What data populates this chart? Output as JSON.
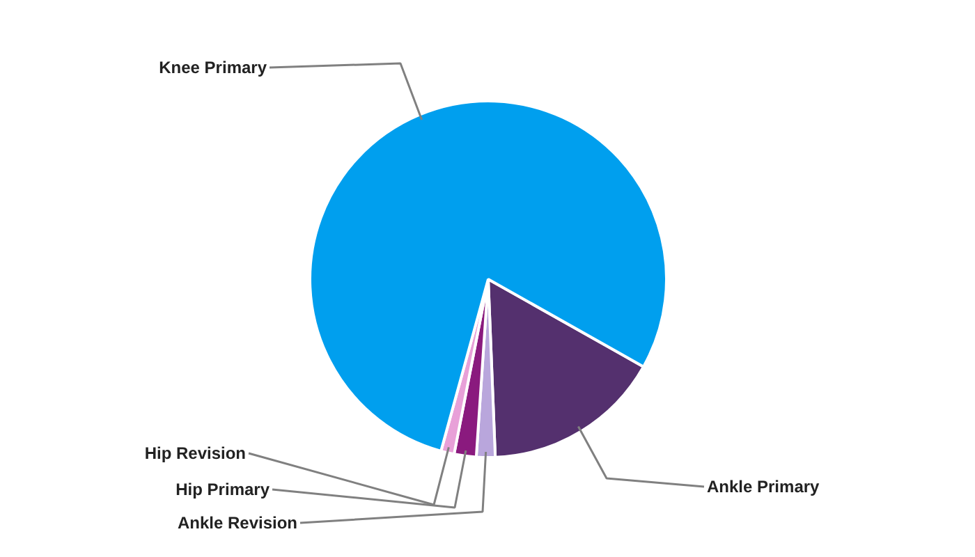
{
  "chart_data": {
    "type": "pie",
    "categories": [
      "Ankle Primary",
      "Ankle Revision",
      "Hip Primary",
      "Hip Revision",
      "Knee Primary"
    ],
    "values": [
      16.2,
      1.7,
      2.0,
      1.2,
      78.9
    ],
    "colors": [
      "#54306e",
      "#b9a6dc",
      "#8a1a7e",
      "#e8a0d8",
      "#009fee"
    ]
  }
}
